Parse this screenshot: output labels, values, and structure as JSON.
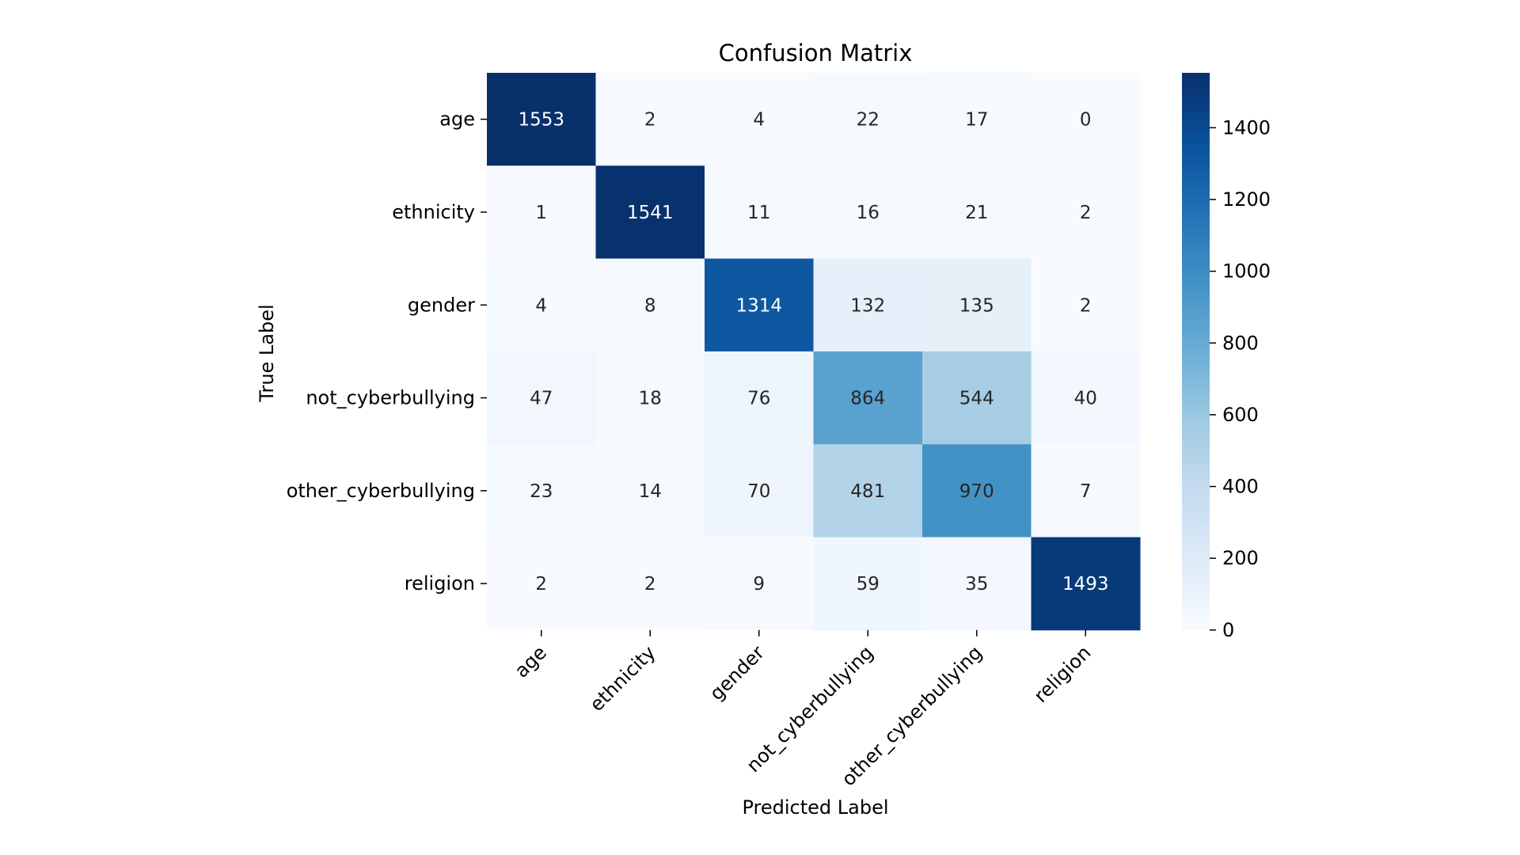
{
  "chart_data": {
    "type": "heatmap",
    "title": "Confusion Matrix",
    "xlabel": "Predicted Label",
    "ylabel": "True Label",
    "x_categories": [
      "age",
      "ethnicity",
      "gender",
      "not_cyberbullying",
      "other_cyberbullying",
      "religion"
    ],
    "y_categories": [
      "age",
      "ethnicity",
      "gender",
      "not_cyberbullying",
      "other_cyberbullying",
      "religion"
    ],
    "values": [
      [
        1553,
        2,
        4,
        22,
        17,
        0
      ],
      [
        1,
        1541,
        11,
        16,
        21,
        2
      ],
      [
        4,
        8,
        1314,
        132,
        135,
        2
      ],
      [
        47,
        18,
        76,
        864,
        544,
        40
      ],
      [
        23,
        14,
        70,
        481,
        970,
        7
      ],
      [
        2,
        2,
        9,
        59,
        35,
        1493
      ]
    ],
    "colorbar": {
      "min": 0,
      "max": 1553,
      "ticks": [
        0,
        200,
        400,
        600,
        800,
        1000,
        1200,
        1400
      ]
    },
    "colormap": "Blues",
    "colors": {
      "low": "#f7fbff",
      "high": "#08306b"
    },
    "grid": false
  }
}
